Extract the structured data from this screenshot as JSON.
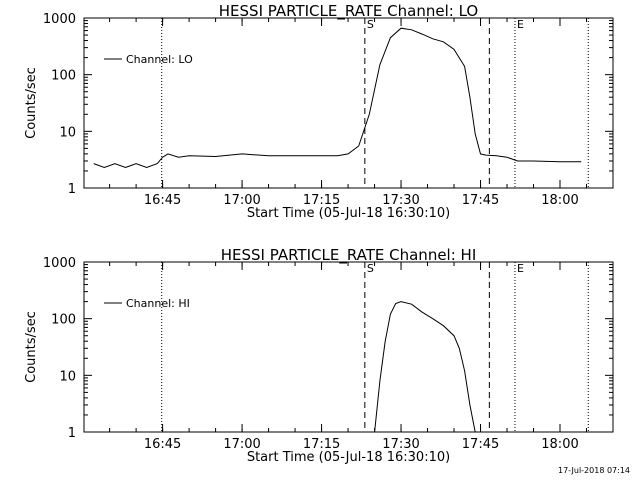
{
  "timestamp": "17-Jul-2018 07:14",
  "chart_data": [
    {
      "type": "line",
      "title": "HESSI PARTICLE_RATE Channel: LO",
      "xlabel": "Start Time (05-Jul-18 16:30:10)",
      "ylabel": "Counts/sec",
      "yscale": "log",
      "ylim": [
        1,
        1000
      ],
      "xlim": [
        "16:30:10",
        "18:10:00"
      ],
      "xticks": [
        "16:45",
        "17:00",
        "17:15",
        "17:30",
        "17:45",
        "18:00"
      ],
      "yticks": [
        "1",
        "10",
        "100",
        "1000"
      ],
      "legend": "Channel: LO",
      "legend_position": "top-left",
      "markers": [
        {
          "label": "",
          "time": "16:44:50",
          "style": "dotted"
        },
        {
          "label": "S",
          "time": "17:23:10",
          "style": "dashed"
        },
        {
          "label": "",
          "time": "17:46:40",
          "style": "dashed"
        },
        {
          "label": "E",
          "time": "17:51:30",
          "style": "dotted"
        },
        {
          "label": "",
          "time": "18:05:20",
          "style": "dotted"
        }
      ],
      "series": [
        {
          "name": "Channel: LO",
          "x": [
            "16:32",
            "16:34",
            "16:36",
            "16:38",
            "16:40",
            "16:42",
            "16:44",
            "16:45",
            "16:46",
            "16:48",
            "16:50",
            "16:55",
            "17:00",
            "17:05",
            "17:10",
            "17:15",
            "17:18",
            "17:20",
            "17:22",
            "17:24",
            "17:26",
            "17:28",
            "17:30",
            "17:32",
            "17:34",
            "17:36",
            "17:38",
            "17:40",
            "17:42",
            "17:43",
            "17:44",
            "17:45",
            "17:46",
            "17:48",
            "17:50",
            "17:52",
            "17:55",
            "18:00",
            "18:03",
            "18:04"
          ],
          "y": [
            2.7,
            2.3,
            2.7,
            2.3,
            2.7,
            2.3,
            2.7,
            3.5,
            4.0,
            3.5,
            3.7,
            3.6,
            4.0,
            3.7,
            3.7,
            3.7,
            3.7,
            4.0,
            5.5,
            20,
            150,
            450,
            660,
            620,
            520,
            430,
            380,
            280,
            140,
            40,
            9,
            4.0,
            3.8,
            3.7,
            3.5,
            3.0,
            3.0,
            2.9,
            2.9,
            2.9
          ]
        }
      ]
    },
    {
      "type": "line",
      "title": "HESSI PARTICLE_RATE Channel: HI",
      "xlabel": "Start Time (05-Jul-18 16:30:10)",
      "ylabel": "Counts/sec",
      "yscale": "log",
      "ylim": [
        1,
        1000
      ],
      "xlim": [
        "16:30:10",
        "18:10:00"
      ],
      "xticks": [
        "16:45",
        "17:00",
        "17:15",
        "17:30",
        "17:45",
        "18:00"
      ],
      "yticks": [
        "1",
        "10",
        "100",
        "1000"
      ],
      "legend": "Channel: HI",
      "legend_position": "top-left",
      "markers": [
        {
          "label": "",
          "time": "16:44:50",
          "style": "dotted"
        },
        {
          "label": "S",
          "time": "17:23:10",
          "style": "dashed"
        },
        {
          "label": "",
          "time": "17:46:40",
          "style": "dashed"
        },
        {
          "label": "E",
          "time": "17:51:30",
          "style": "dotted"
        },
        {
          "label": "",
          "time": "18:05:20",
          "style": "dotted"
        }
      ],
      "series": [
        {
          "name": "Channel: HI",
          "x": [
            "17:25",
            "17:26",
            "17:27",
            "17:28",
            "17:29",
            "17:30",
            "17:32",
            "17:34",
            "17:36",
            "17:38",
            "17:40",
            "17:41",
            "17:42",
            "17:43",
            "17:44"
          ],
          "y": [
            1,
            8,
            40,
            120,
            185,
            200,
            180,
            130,
            100,
            75,
            50,
            30,
            12,
            3,
            1
          ]
        }
      ]
    }
  ]
}
